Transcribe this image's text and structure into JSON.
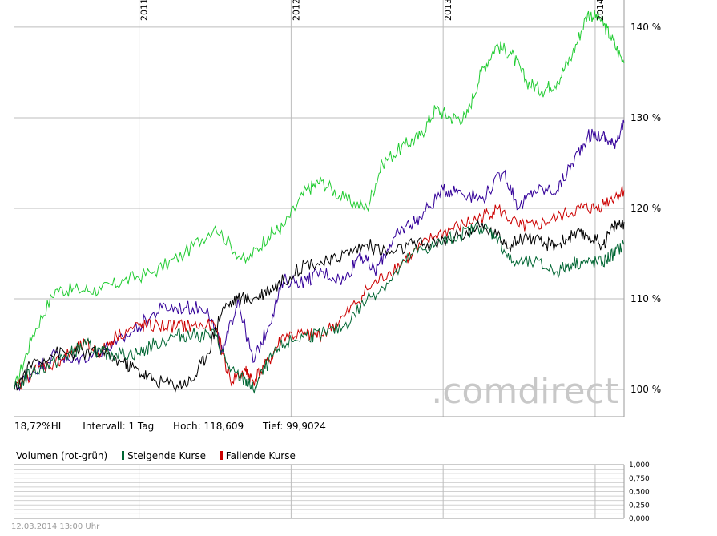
{
  "stats": {
    "performance": "18,72%HL",
    "interval": "Intervall: 1 Tag",
    "high": "Hoch:  118,609",
    "low": "Tief: 99,9024"
  },
  "volume_legend": {
    "label": "Volumen (rot-grün)",
    "rising": "Steigende Kurse",
    "falling": "Fallende Kurse",
    "rising_color": "#006633",
    "falling_color": "#cc0000"
  },
  "watermark": ".comdirect",
  "footer": "12.03.2014 13:00 Uhr",
  "chart_data": [
    {
      "type": "line",
      "title": "",
      "xlabel": "",
      "ylabel": "",
      "x_ticks": [
        "2011",
        "2012",
        "2013",
        "2014"
      ],
      "x_tick_positions": [
        2011.0,
        2012.0,
        2013.0,
        2014.0
      ],
      "xlim": [
        2010.18,
        2014.19
      ],
      "y_ticks": [
        "100 %",
        "110 %",
        "120 %",
        "130 %",
        "140 %"
      ],
      "y_tick_values": [
        100,
        110,
        120,
        130,
        140
      ],
      "ylim": [
        97,
        143
      ],
      "grid": true,
      "series": [
        {
          "color": "#22cc33",
          "points": [
            [
              2010.18,
              100
            ],
            [
              2010.3,
              106
            ],
            [
              2010.45,
              111
            ],
            [
              2010.6,
              111
            ],
            [
              2010.75,
              111
            ],
            [
              2010.9,
              112
            ],
            [
              2011.1,
              113
            ],
            [
              2011.3,
              115
            ],
            [
              2011.5,
              118
            ],
            [
              2011.7,
              114
            ],
            [
              2011.85,
              117
            ],
            [
              2011.95,
              118
            ],
            [
              2012.1,
              122
            ],
            [
              2012.2,
              123
            ],
            [
              2012.35,
              121
            ],
            [
              2012.5,
              120
            ],
            [
              2012.6,
              125
            ],
            [
              2012.75,
              127
            ],
            [
              2012.85,
              128
            ],
            [
              2012.95,
              131
            ],
            [
              2013.05,
              130
            ],
            [
              2013.15,
              130
            ],
            [
              2013.25,
              135
            ],
            [
              2013.35,
              138
            ],
            [
              2013.45,
              137
            ],
            [
              2013.55,
              134
            ],
            [
              2013.65,
              133
            ],
            [
              2013.75,
              134
            ],
            [
              2013.85,
              137
            ],
            [
              2013.95,
              141.5
            ],
            [
              2014.03,
              141
            ],
            [
              2014.1,
              139
            ],
            [
              2014.19,
              136
            ]
          ]
        },
        {
          "color": "#330099",
          "points": [
            [
              2010.18,
              100
            ],
            [
              2010.3,
              102
            ],
            [
              2010.45,
              104
            ],
            [
              2010.55,
              103
            ],
            [
              2010.7,
              104
            ],
            [
              2010.85,
              105
            ],
            [
              2011.0,
              107
            ],
            [
              2011.15,
              109
            ],
            [
              2011.3,
              109
            ],
            [
              2011.45,
              109
            ],
            [
              2011.55,
              104
            ],
            [
              2011.65,
              110
            ],
            [
              2011.75,
              103
            ],
            [
              2011.85,
              107
            ],
            [
              2011.95,
              112
            ],
            [
              2012.1,
              112
            ],
            [
              2012.2,
              113
            ],
            [
              2012.35,
              112
            ],
            [
              2012.45,
              115
            ],
            [
              2012.55,
              113
            ],
            [
              2012.65,
              116
            ],
            [
              2012.75,
              118
            ],
            [
              2012.85,
              119
            ],
            [
              2013.0,
              122
            ],
            [
              2013.1,
              122
            ],
            [
              2013.25,
              121
            ],
            [
              2013.4,
              124
            ],
            [
              2013.5,
              120
            ],
            [
              2013.6,
              122
            ],
            [
              2013.75,
              122
            ],
            [
              2013.85,
              125
            ],
            [
              2013.95,
              128
            ],
            [
              2014.05,
              128
            ],
            [
              2014.12,
              127
            ],
            [
              2014.19,
              129.5
            ]
          ]
        },
        {
          "color": "#cc0000",
          "points": [
            [
              2010.18,
              100
            ],
            [
              2010.3,
              102
            ],
            [
              2010.45,
              103
            ],
            [
              2010.55,
              104
            ],
            [
              2010.65,
              105
            ],
            [
              2010.75,
              104
            ],
            [
              2010.85,
              106
            ],
            [
              2011.0,
              107
            ],
            [
              2011.1,
              107
            ],
            [
              2011.25,
              107
            ],
            [
              2011.35,
              107
            ],
            [
              2011.5,
              107
            ],
            [
              2011.6,
              101
            ],
            [
              2011.7,
              102
            ],
            [
              2011.75,
              101
            ],
            [
              2011.85,
              103
            ],
            [
              2011.95,
              106
            ],
            [
              2012.1,
              106
            ],
            [
              2012.2,
              106
            ],
            [
              2012.35,
              108
            ],
            [
              2012.5,
              111
            ],
            [
              2012.65,
              113
            ],
            [
              2012.8,
              115
            ],
            [
              2012.95,
              117
            ],
            [
              2013.1,
              118
            ],
            [
              2013.25,
              119
            ],
            [
              2013.35,
              120
            ],
            [
              2013.5,
              118
            ],
            [
              2013.6,
              118
            ],
            [
              2013.75,
              119
            ],
            [
              2013.9,
              120
            ],
            [
              2014.0,
              120
            ],
            [
              2014.1,
              121
            ],
            [
              2014.19,
              122
            ]
          ]
        },
        {
          "color": "#000000",
          "points": [
            [
              2010.18,
              100
            ],
            [
              2010.3,
              103
            ],
            [
              2010.45,
              104
            ],
            [
              2010.6,
              104
            ],
            [
              2010.75,
              104
            ],
            [
              2010.9,
              103
            ],
            [
              2011.0,
              102
            ],
            [
              2011.1,
              101
            ],
            [
              2011.25,
              100.5
            ],
            [
              2011.35,
              101
            ],
            [
              2011.45,
              104
            ],
            [
              2011.55,
              109
            ],
            [
              2011.65,
              110
            ],
            [
              2011.75,
              110
            ],
            [
              2011.85,
              111
            ],
            [
              2011.95,
              112
            ],
            [
              2012.1,
              114
            ],
            [
              2012.25,
              114
            ],
            [
              2012.35,
              115
            ],
            [
              2012.5,
              116
            ],
            [
              2012.65,
              115
            ],
            [
              2012.8,
              116
            ],
            [
              2012.95,
              116
            ],
            [
              2013.1,
              117
            ],
            [
              2013.25,
              118
            ],
            [
              2013.35,
              117
            ],
            [
              2013.45,
              116
            ],
            [
              2013.55,
              117
            ],
            [
              2013.65,
              116
            ],
            [
              2013.75,
              116
            ],
            [
              2013.85,
              117
            ],
            [
              2013.95,
              117
            ],
            [
              2014.05,
              116
            ],
            [
              2014.12,
              118
            ],
            [
              2014.19,
              118.5
            ]
          ]
        },
        {
          "color": "#006633",
          "points": [
            [
              2010.18,
              100
            ],
            [
              2010.3,
              102
            ],
            [
              2010.45,
              103
            ],
            [
              2010.55,
              104
            ],
            [
              2010.65,
              105
            ],
            [
              2010.75,
              104
            ],
            [
              2010.85,
              104
            ],
            [
              2011.0,
              104
            ],
            [
              2011.1,
              105
            ],
            [
              2011.25,
              106
            ],
            [
              2011.35,
              106
            ],
            [
              2011.5,
              106
            ],
            [
              2011.6,
              102
            ],
            [
              2011.7,
              101
            ],
            [
              2011.75,
              100
            ],
            [
              2011.85,
              103
            ],
            [
              2011.95,
              105
            ],
            [
              2012.1,
              106
            ],
            [
              2012.2,
              106
            ],
            [
              2012.35,
              107
            ],
            [
              2012.5,
              110
            ],
            [
              2012.65,
              112
            ],
            [
              2012.8,
              115
            ],
            [
              2012.95,
              116
            ],
            [
              2013.1,
              117
            ],
            [
              2013.25,
              118
            ],
            [
              2013.35,
              117
            ],
            [
              2013.45,
              114
            ],
            [
              2013.6,
              114
            ],
            [
              2013.75,
              113
            ],
            [
              2013.85,
              114
            ],
            [
              2013.95,
              114
            ],
            [
              2014.05,
              114
            ],
            [
              2014.12,
              115
            ],
            [
              2014.19,
              116
            ]
          ]
        }
      ]
    },
    {
      "type": "bar",
      "title": "",
      "y_ticks": [
        "1,000",
        "0,750",
        "0,500",
        "0,250",
        "0,000"
      ],
      "y_tick_values": [
        1.0,
        0.75,
        0.5,
        0.25,
        0.0
      ],
      "ylim": [
        0,
        1
      ],
      "grid": true,
      "values": []
    }
  ]
}
